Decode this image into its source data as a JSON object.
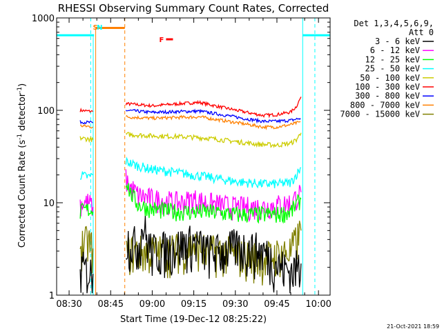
{
  "chart_data": {
    "type": "line",
    "title": "RHESSI Observing Summary Count Rates, Corrected",
    "xlabel": "Start Time (19-Dec-12 08:25:22)",
    "ylabel_main": "Corrected Count Rate (s",
    "ylabel_sup": "-1",
    "ylabel_mid": " detector",
    "ylabel_end": ")",
    "xlim_min": [
      8.4,
      10.05
    ],
    "ylim": [
      1,
      1000
    ],
    "y_scale": "log",
    "x_ticks": [
      {
        "t": 510,
        "label": "08:30"
      },
      {
        "t": 525,
        "label": "08:45"
      },
      {
        "t": 540,
        "label": "09:00"
      },
      {
        "t": 555,
        "label": "09:15"
      },
      {
        "t": 570,
        "label": "09:30"
      },
      {
        "t": 585,
        "label": "09:45"
      },
      {
        "t": 600,
        "label": "10:00"
      }
    ],
    "y_ticks": [
      {
        "v": 1,
        "label": "1"
      },
      {
        "v": 10,
        "label": "10"
      },
      {
        "v": 100,
        "label": "100"
      },
      {
        "v": 1000,
        "label": "1000"
      }
    ],
    "legend_header": [
      "Det 1,3,4,5,6,9,",
      "Att 0"
    ],
    "series": [
      {
        "name": "3 - 6 keV",
        "color": "#000000"
      },
      {
        "name": "6 - 12 keV",
        "color": "#ff00ff"
      },
      {
        "name": "12 - 25 keV",
        "color": "#00ff00"
      },
      {
        "name": "25 - 50 keV",
        "color": "#00ffff"
      },
      {
        "name": "50 - 100 keV",
        "color": "#cccc00"
      },
      {
        "name": "100 - 300 keV",
        "color": "#ff0000"
      },
      {
        "name": "300 - 800 keV",
        "color": "#0000ff"
      },
      {
        "name": "800 - 7000 keV",
        "color": "#ff8000"
      },
      {
        "name": "7000 - 15000 keV",
        "color": "#808000"
      }
    ],
    "series_segments": [
      {
        "s": 5,
        "points": [
          [
            514.0,
            100
          ],
          [
            517.0,
            98
          ],
          [
            518.6,
            97
          ]
        ]
      },
      {
        "s": 5,
        "points": [
          [
            530.5,
            118
          ],
          [
            540,
            112
          ],
          [
            550,
            118
          ],
          [
            557,
            122
          ],
          [
            565,
            108
          ],
          [
            575,
            94
          ],
          [
            580,
            88
          ],
          [
            585,
            90
          ],
          [
            590,
            96
          ],
          [
            592,
            110
          ],
          [
            593.7,
            140
          ]
        ]
      },
      {
        "s": 6,
        "points": [
          [
            514.0,
            75
          ],
          [
            517.0,
            74
          ],
          [
            518.6,
            73
          ]
        ]
      },
      {
        "s": 6,
        "points": [
          [
            530.5,
            100
          ],
          [
            540,
            95
          ],
          [
            550,
            97
          ],
          [
            557,
            98
          ],
          [
            565,
            90
          ],
          [
            575,
            80
          ],
          [
            580,
            76
          ],
          [
            585,
            76
          ],
          [
            590,
            78
          ],
          [
            593.5,
            82
          ]
        ]
      },
      {
        "s": 7,
        "points": [
          [
            514.0,
            68
          ],
          [
            517.0,
            67
          ],
          [
            518.6,
            66
          ]
        ]
      },
      {
        "s": 7,
        "points": [
          [
            530.5,
            85
          ],
          [
            540,
            82
          ],
          [
            550,
            84
          ],
          [
            557,
            85
          ],
          [
            565,
            78
          ],
          [
            575,
            70
          ],
          [
            580,
            66
          ],
          [
            585,
            66
          ],
          [
            590,
            70
          ],
          [
            593.5,
            75
          ]
        ]
      },
      {
        "s": 4,
        "points": [
          [
            514.0,
            50
          ],
          [
            517.0,
            49
          ],
          [
            518.6,
            48
          ]
        ]
      },
      {
        "s": 4,
        "points": [
          [
            530.5,
            55
          ],
          [
            540,
            53
          ],
          [
            550,
            52
          ],
          [
            560,
            50
          ],
          [
            570,
            46
          ],
          [
            578,
            43
          ],
          [
            585,
            42
          ],
          [
            590,
            44
          ],
          [
            592,
            48
          ],
          [
            593.7,
            57
          ]
        ]
      },
      {
        "s": 3,
        "points": [
          [
            514.0,
            20
          ],
          [
            517.0,
            19
          ],
          [
            518.6,
            20
          ]
        ]
      },
      {
        "s": 3,
        "points": [
          [
            530.5,
            28
          ],
          [
            535,
            25
          ],
          [
            540,
            23
          ],
          [
            550,
            21
          ],
          [
            560,
            19
          ],
          [
            570,
            17
          ],
          [
            580,
            16
          ],
          [
            585,
            16
          ],
          [
            590,
            16.5
          ],
          [
            593.7,
            24
          ]
        ]
      },
      {
        "s": 1,
        "points": [
          [
            514.0,
            10
          ],
          [
            517.0,
            10
          ],
          [
            518.6,
            9
          ]
        ]
      },
      {
        "s": 1,
        "points": [
          [
            530.5,
            18
          ],
          [
            532,
            15
          ],
          [
            535,
            12
          ],
          [
            540,
            11
          ],
          [
            545,
            10.5
          ],
          [
            550,
            10
          ],
          [
            555,
            11
          ],
          [
            560,
            10
          ],
          [
            565,
            9.5
          ],
          [
            570,
            9
          ],
          [
            575,
            9
          ],
          [
            580,
            9
          ],
          [
            585,
            9.5
          ],
          [
            590,
            10
          ],
          [
            593.7,
            13
          ]
        ]
      },
      {
        "s": 2,
        "points": [
          [
            514.0,
            8
          ],
          [
            517.0,
            8.5
          ],
          [
            518.6,
            8
          ]
        ]
      },
      {
        "s": 2,
        "points": [
          [
            530.5,
            18
          ],
          [
            532,
            13
          ],
          [
            535,
            9.5
          ],
          [
            540,
            8.5
          ],
          [
            550,
            8
          ],
          [
            560,
            8
          ],
          [
            570,
            7.5
          ],
          [
            580,
            7.5
          ],
          [
            585,
            7.5
          ],
          [
            590,
            8
          ],
          [
            593.7,
            11
          ]
        ]
      },
      {
        "s": 8,
        "points": [
          [
            514.0,
            3.5
          ],
          [
            517.0,
            3.8
          ],
          [
            518.6,
            3.2
          ]
        ]
      },
      {
        "s": 8,
        "points": [
          [
            530.5,
            3
          ],
          [
            535,
            3
          ],
          [
            540,
            3
          ],
          [
            545,
            3
          ],
          [
            550,
            3.2
          ],
          [
            555,
            3.5
          ],
          [
            560,
            3
          ],
          [
            565,
            3
          ],
          [
            570,
            2.8
          ],
          [
            575,
            2.6
          ],
          [
            580,
            2.5
          ],
          [
            585,
            2.8
          ],
          [
            590,
            3
          ],
          [
            593.7,
            5
          ]
        ]
      },
      {
        "s": 0,
        "points": [
          [
            514.0,
            2
          ],
          [
            517.0,
            1.8
          ],
          [
            518.6,
            1.7
          ]
        ]
      },
      {
        "s": 0,
        "points": [
          [
            530.5,
            4
          ],
          [
            535,
            3.5
          ],
          [
            537,
            6
          ],
          [
            538,
            4
          ],
          [
            540,
            3
          ],
          [
            545,
            3.2
          ],
          [
            550,
            3.5
          ],
          [
            555,
            3.8
          ],
          [
            560,
            3
          ],
          [
            565,
            3
          ],
          [
            570,
            3.4
          ],
          [
            575,
            3.2
          ],
          [
            580,
            3
          ],
          [
            585,
            2.2
          ],
          [
            590,
            1.8
          ],
          [
            593.7,
            2.2
          ]
        ]
      }
    ],
    "markers": [
      {
        "label": "S",
        "t": 518.6,
        "color": "#ff8000"
      },
      {
        "label": "N",
        "t": 520.0,
        "color": "#00ffff"
      },
      {
        "label": "F",
        "t": 542.5,
        "color": "#ff0000"
      }
    ],
    "footer_date": "21-Oct-2021 18:59"
  }
}
